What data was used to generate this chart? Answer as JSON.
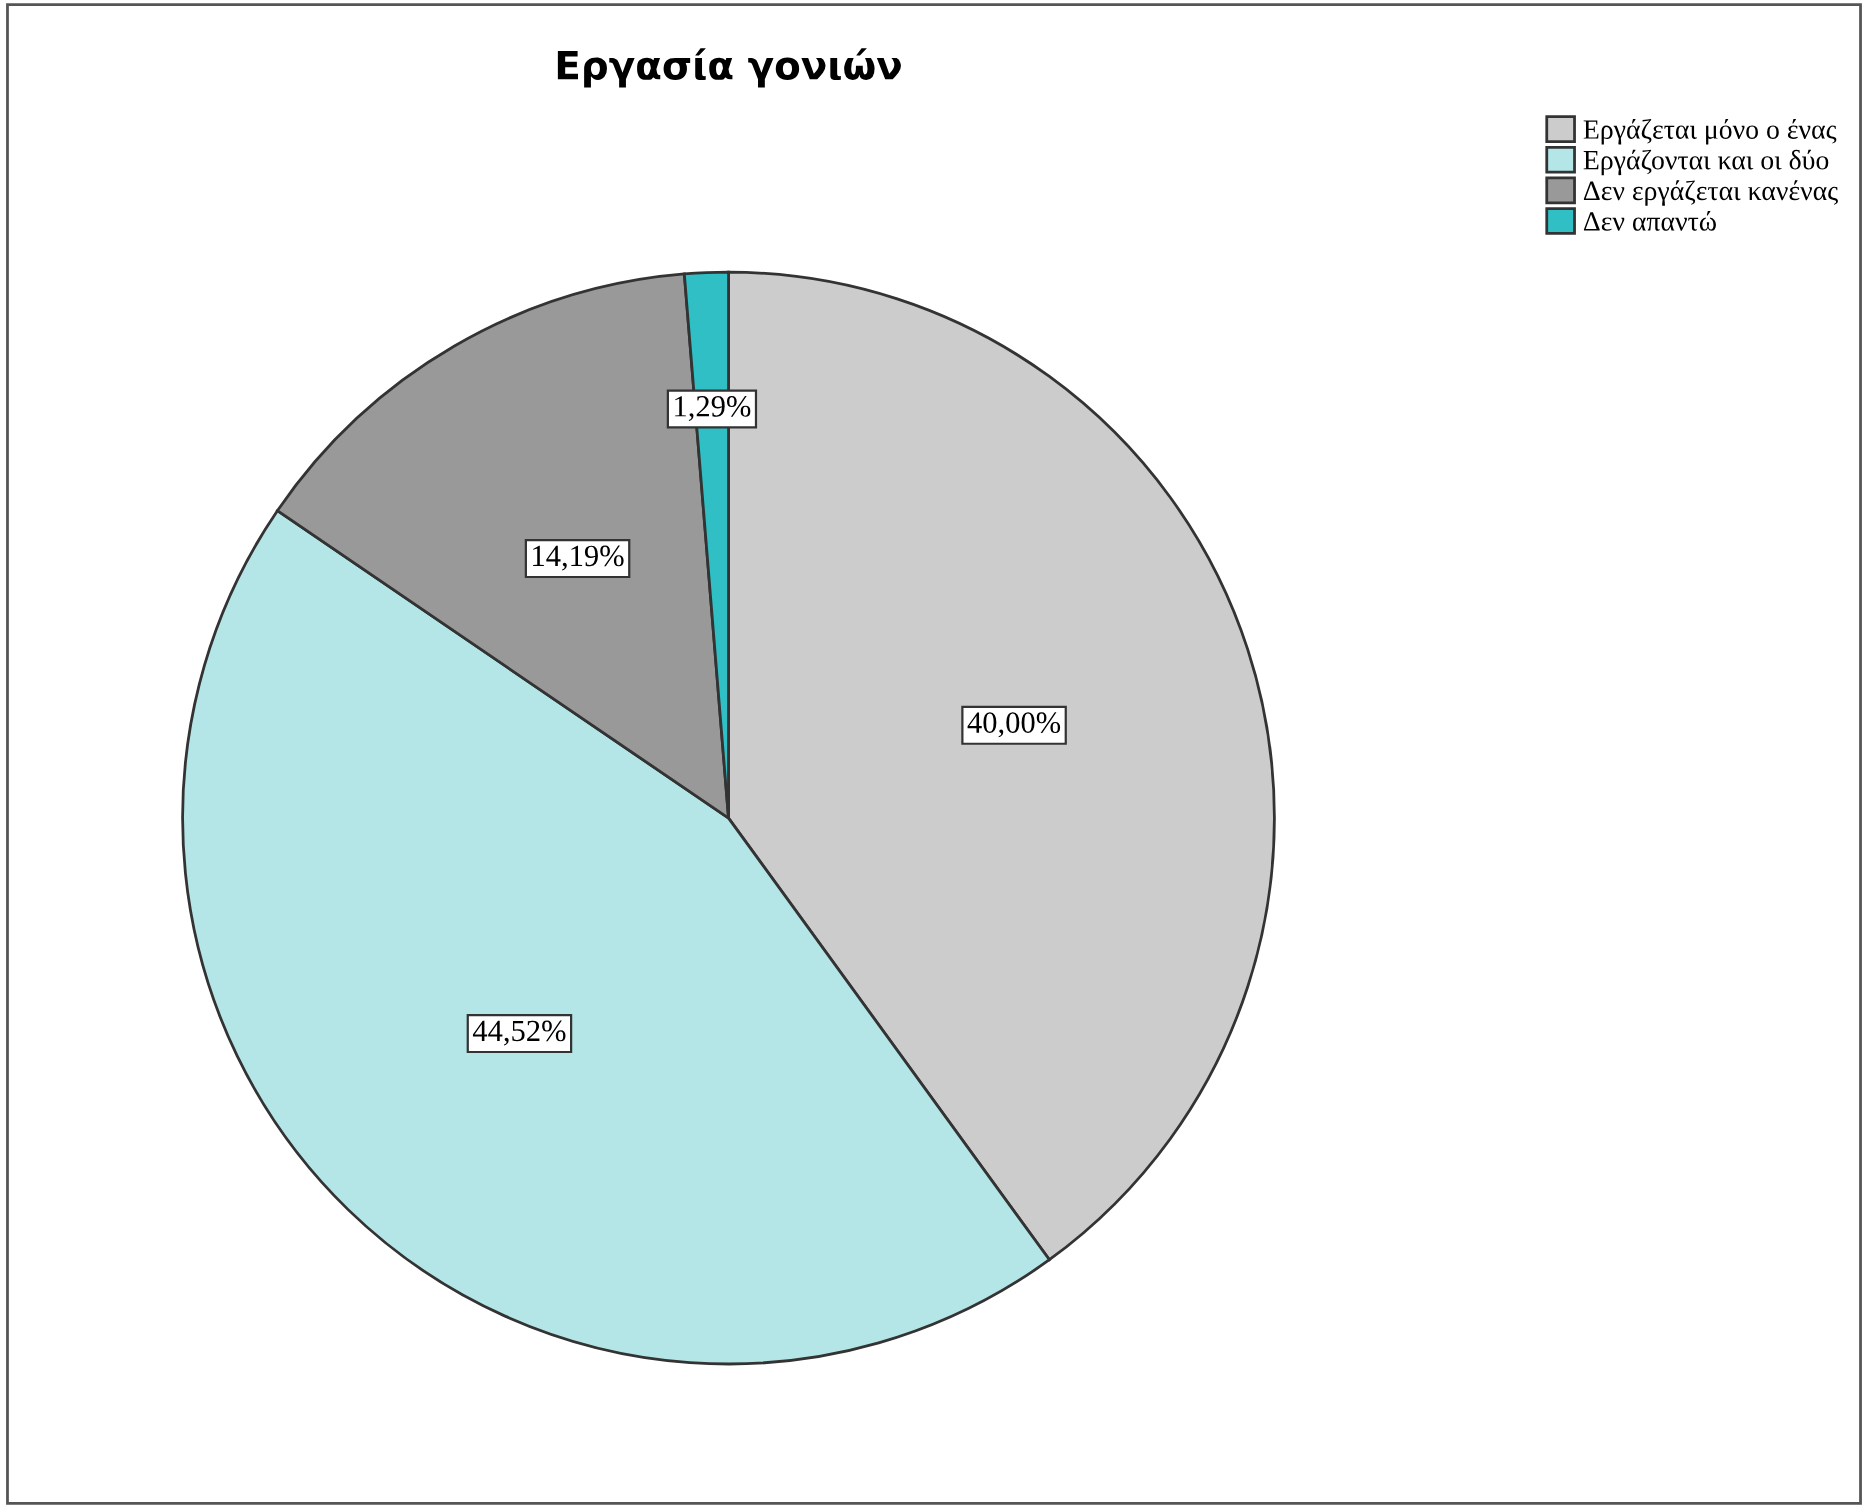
{
  "chart_data": {
    "type": "pie",
    "title": "Εργασία γονιών",
    "categories": [
      "Εργάζεται μόνο ο ένας",
      "Εργάζονται και οι δύο",
      "Δεν εργάζεται κανένας",
      "Δεν απαντώ"
    ],
    "values": [
      40.0,
      44.52,
      14.19,
      1.29
    ],
    "colors": [
      "#cccccc",
      "#b4e6e8",
      "#999999",
      "#2fbfc4"
    ],
    "value_labels": [
      "40,00%",
      "44,52%",
      "14,19%",
      "1,29%"
    ],
    "legend": "top right"
  }
}
